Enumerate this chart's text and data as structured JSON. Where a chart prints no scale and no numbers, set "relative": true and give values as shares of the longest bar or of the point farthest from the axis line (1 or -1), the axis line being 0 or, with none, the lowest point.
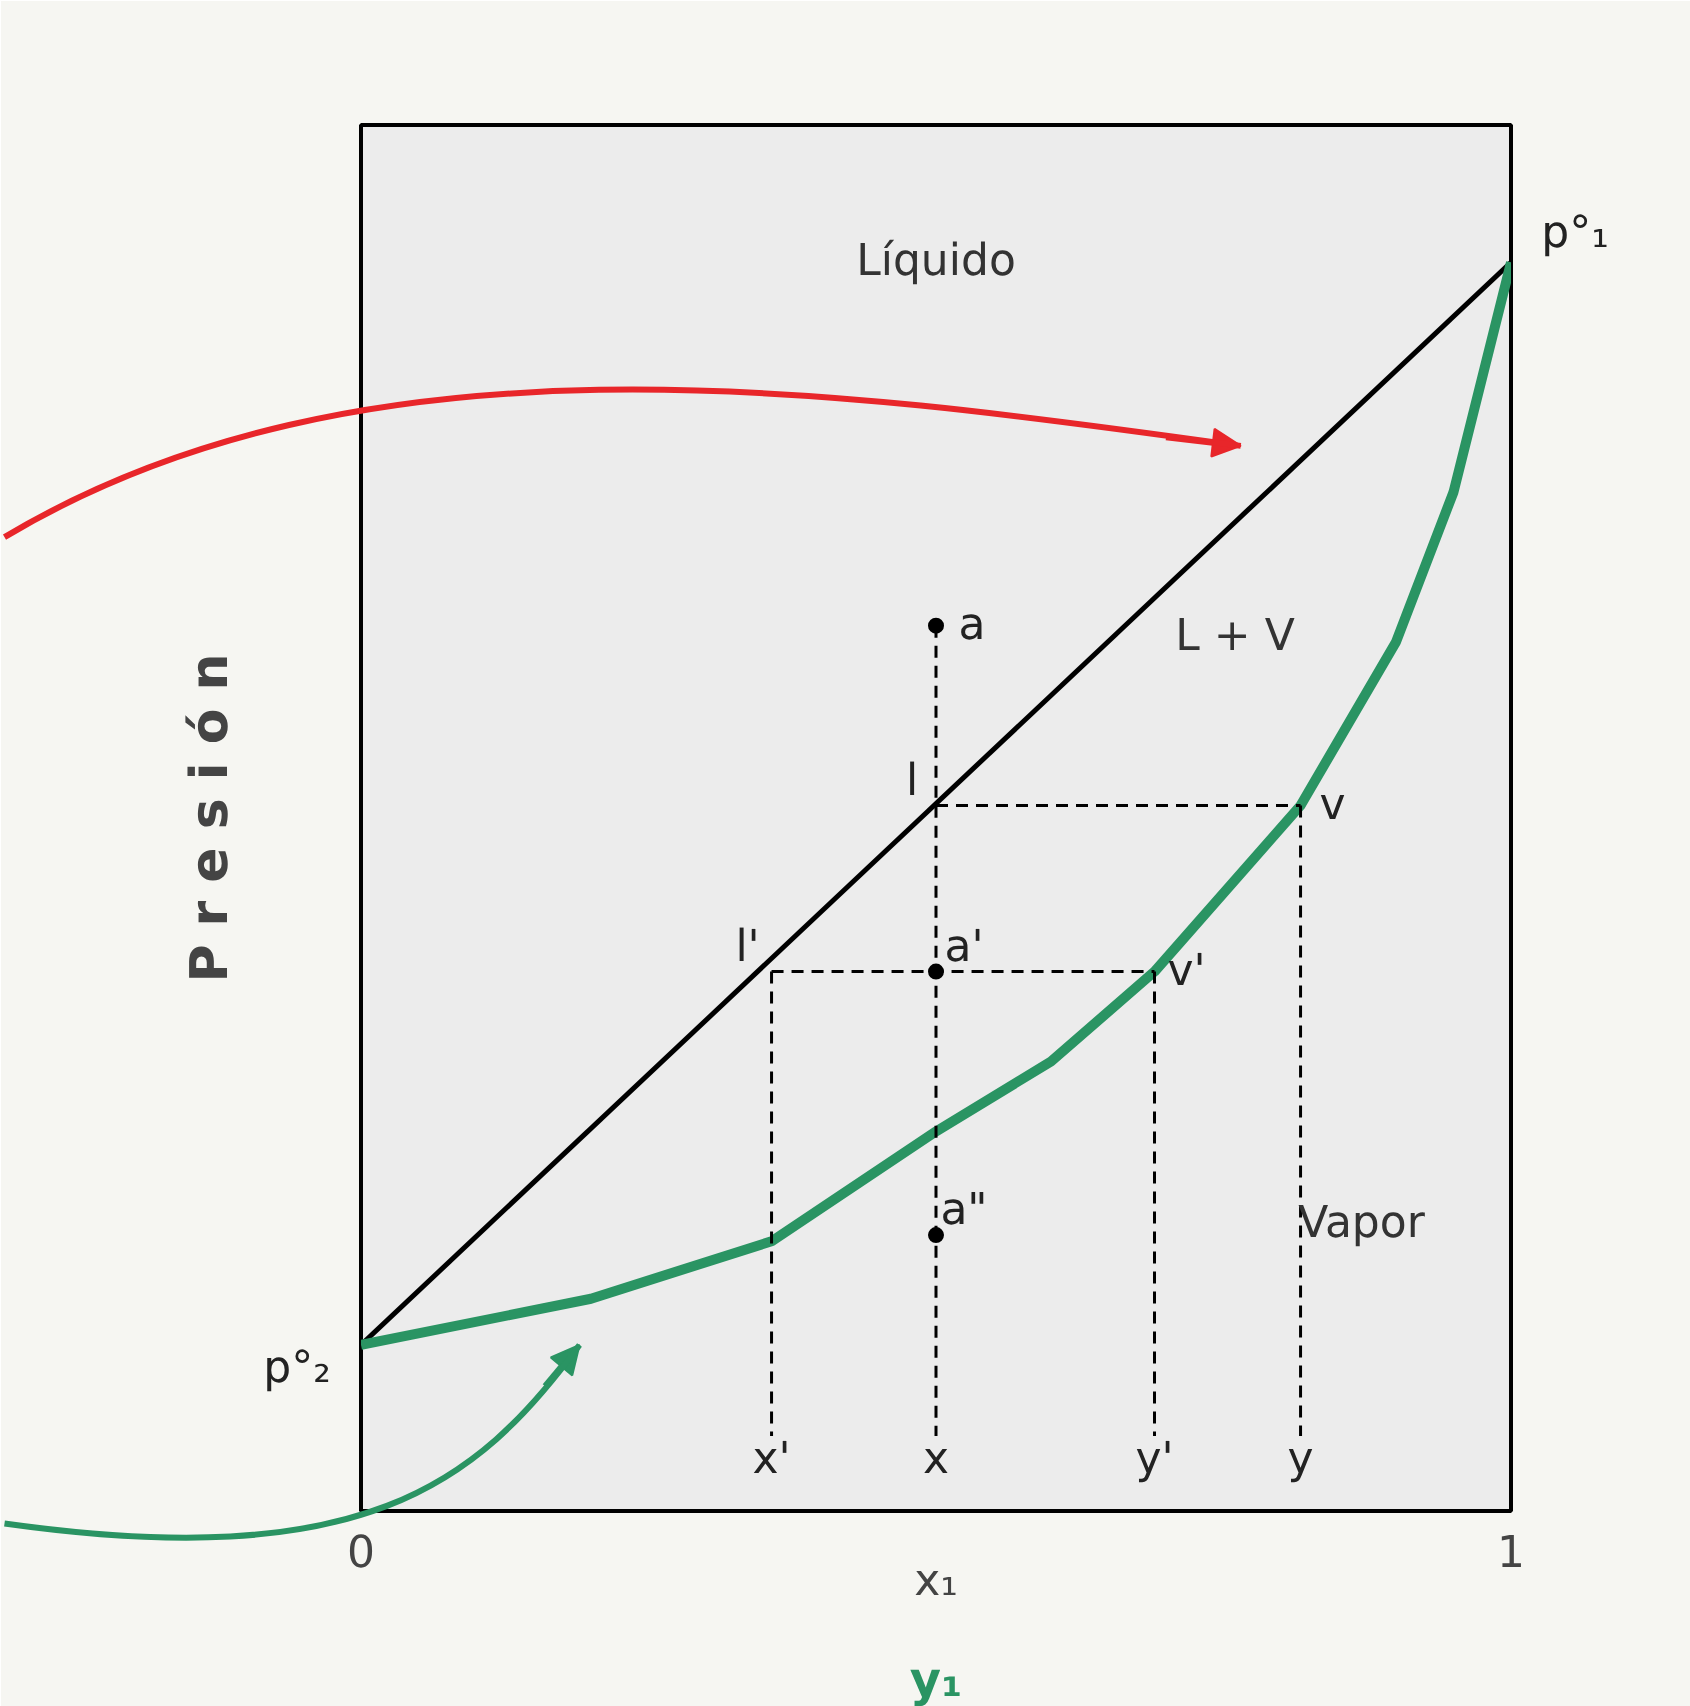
{
  "chart_data": {
    "type": "line",
    "relative": true,
    "xlabel": "x₁",
    "ylabel": "P r e s i ó n",
    "xlim": [
      0,
      1
    ],
    "xticks": [
      0,
      1
    ],
    "series": [
      {
        "color": "#000000",
        "x": [
          0,
          1
        ],
        "values": [
          0.133,
          1
        ],
        "line_style": "solid"
      },
      {
        "color": "#2a9463",
        "x": [
          0,
          0.2,
          0.357,
          0.5,
          0.6,
          0.69,
          0.817,
          0.9,
          0.95,
          1
        ],
        "values": [
          0.133,
          0.17,
          0.216,
          0.304,
          0.36,
          0.432,
          0.565,
          0.696,
          0.816,
          1
        ],
        "line_style": "solid"
      },
      {
        "color": "#000000",
        "x": [
          0.5,
          0.5
        ],
        "values": [
          0.709,
          0.06
        ],
        "line_style": "dashed"
      },
      {
        "color": "#000000",
        "x": [
          0.357,
          0.357
        ],
        "values": [
          0.432,
          0.06
        ],
        "line_style": "dashed"
      },
      {
        "color": "#000000",
        "x": [
          0.69,
          0.69
        ],
        "values": [
          0.432,
          0.06
        ],
        "line_style": "dashed"
      },
      {
        "color": "#000000",
        "x": [
          0.817,
          0.817
        ],
        "values": [
          0.565,
          0.06
        ],
        "line_style": "dashed"
      },
      {
        "color": "#000000",
        "x": [
          0.5,
          0.817
        ],
        "values": [
          0.565,
          0.565
        ],
        "line_style": "dashed"
      },
      {
        "color": "#000000",
        "x": [
          0.357,
          0.69
        ],
        "values": [
          0.432,
          0.432
        ],
        "line_style": "dashed"
      },
      {
        "type": "scatter",
        "color": "#000000",
        "marker": "circle",
        "x": [
          0.5,
          0.5,
          0.5
        ],
        "values": [
          0.709,
          0.432,
          0.221
        ]
      }
    ],
    "annotations": [
      "Líquido",
      "L + V",
      "Vapor",
      {
        "text": "p°₁",
        "x": 1,
        "y": 1
      },
      {
        "text": "p°₂",
        "x": 0,
        "y": 0.133
      },
      {
        "text": "a",
        "x": 0.5,
        "y": 0.709
      },
      {
        "text": "l",
        "x": 0.5,
        "y": 0.565
      },
      {
        "text": "v",
        "x": 0.817,
        "y": 0.565
      },
      {
        "text": "l'",
        "x": 0.357,
        "y": 0.432
      },
      {
        "text": "a'",
        "x": 0.5,
        "y": 0.432
      },
      {
        "text": "v'",
        "x": 0.69,
        "y": 0.432
      },
      {
        "text": "a\"",
        "x": 0.5,
        "y": 0.221
      },
      {
        "text": "x'",
        "x": 0.357,
        "y": 0.06
      },
      {
        "text": "x",
        "x": 0.5,
        "y": 0.06
      },
      {
        "text": "y'",
        "x": 0.69,
        "y": 0.06
      },
      {
        "text": "y",
        "x": 0.817,
        "y": 0.06
      },
      "y₁"
    ]
  }
}
